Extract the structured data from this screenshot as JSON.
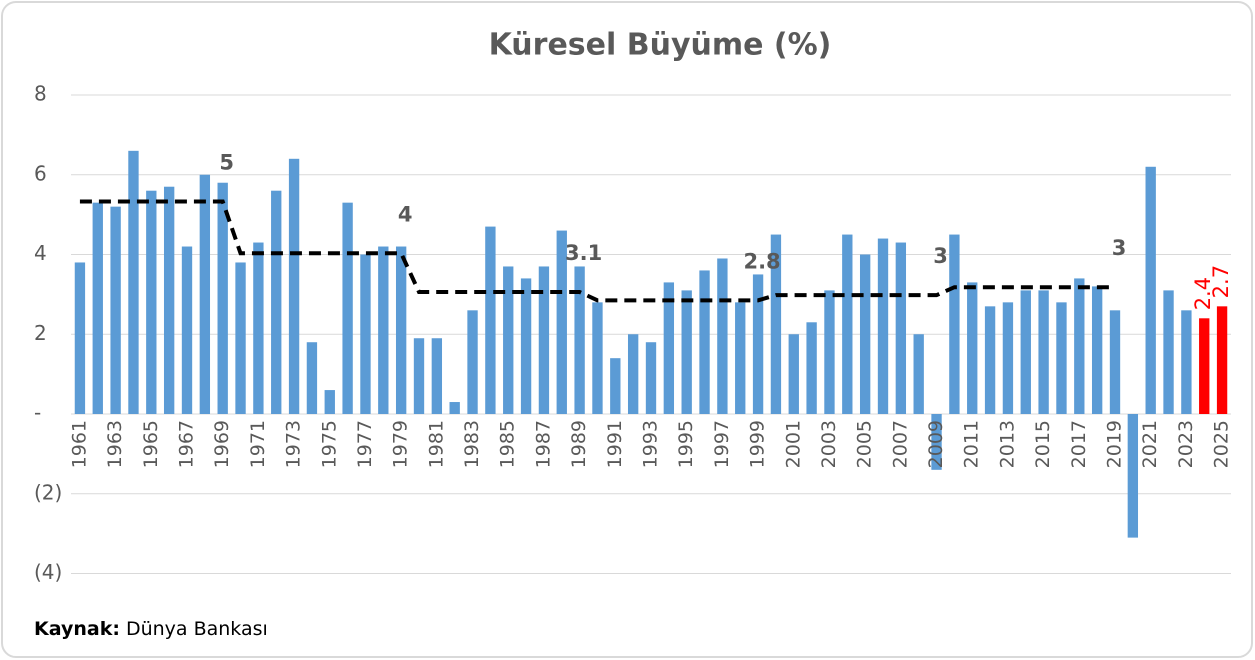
{
  "chart_data": {
    "type": "bar",
    "title": "Küresel Büyüme (%)",
    "categories": [
      "1961",
      null,
      "1963",
      null,
      "1965",
      null,
      "1967",
      null,
      "1969",
      null,
      "1971",
      null,
      "1973",
      null,
      "1975",
      null,
      "1977",
      null,
      "1979",
      null,
      "1981",
      null,
      "1983",
      null,
      "1985",
      null,
      "1987",
      null,
      "1989",
      null,
      "1991",
      null,
      "1993",
      null,
      "1995",
      null,
      "1997",
      null,
      "1999",
      null,
      "2001",
      null,
      "2003",
      null,
      "2005",
      null,
      "2007",
      null,
      "2009",
      null,
      "2011",
      null,
      "2013",
      null,
      "2015",
      null,
      "2017",
      null,
      "2019",
      null,
      "2021",
      null,
      "2023",
      null,
      "2025"
    ],
    "values": [
      3.8,
      5.3,
      5.2,
      6.6,
      5.6,
      5.7,
      4.2,
      6.0,
      5.8,
      3.8,
      4.3,
      5.6,
      6.4,
      1.8,
      0.6,
      5.3,
      4.0,
      4.2,
      4.2,
      1.9,
      1.9,
      0.3,
      2.6,
      4.7,
      3.7,
      3.4,
      3.7,
      4.6,
      3.7,
      2.8,
      1.4,
      2.0,
      1.8,
      3.3,
      3.1,
      3.6,
      3.9,
      2.8,
      3.5,
      4.5,
      2.0,
      2.3,
      3.1,
      4.5,
      4.0,
      4.4,
      4.3,
      2.0,
      -1.4,
      4.5,
      3.3,
      2.7,
      2.8,
      3.1,
      3.1,
      2.8,
      3.4,
      3.2,
      2.6,
      -3.1,
      6.2,
      3.1,
      2.6,
      2.4,
      2.7
    ],
    "colors": [
      "#5b9bd5",
      "#5b9bd5",
      "#5b9bd5",
      "#5b9bd5",
      "#5b9bd5",
      "#5b9bd5",
      "#5b9bd5",
      "#5b9bd5",
      "#5b9bd5",
      "#5b9bd5",
      "#5b9bd5",
      "#5b9bd5",
      "#5b9bd5",
      "#5b9bd5",
      "#5b9bd5",
      "#5b9bd5",
      "#5b9bd5",
      "#5b9bd5",
      "#5b9bd5",
      "#5b9bd5",
      "#5b9bd5",
      "#5b9bd5",
      "#5b9bd5",
      "#5b9bd5",
      "#5b9bd5",
      "#5b9bd5",
      "#5b9bd5",
      "#5b9bd5",
      "#5b9bd5",
      "#5b9bd5",
      "#5b9bd5",
      "#5b9bd5",
      "#5b9bd5",
      "#5b9bd5",
      "#5b9bd5",
      "#5b9bd5",
      "#5b9bd5",
      "#5b9bd5",
      "#5b9bd5",
      "#5b9bd5",
      "#5b9bd5",
      "#5b9bd5",
      "#5b9bd5",
      "#5b9bd5",
      "#5b9bd5",
      "#5b9bd5",
      "#5b9bd5",
      "#5b9bd5",
      "#5b9bd5",
      "#5b9bd5",
      "#5b9bd5",
      "#5b9bd5",
      "#5b9bd5",
      "#5b9bd5",
      "#5b9bd5",
      "#5b9bd5",
      "#5b9bd5",
      "#5b9bd5",
      "#5b9bd5",
      "#5b9bd5",
      "#5b9bd5",
      "#5b9bd5",
      "#5b9bd5",
      "#ff0000",
      "#ff0000"
    ],
    "value_labels": [
      null,
      null,
      null,
      null,
      null,
      null,
      null,
      null,
      null,
      null,
      null,
      null,
      null,
      null,
      null,
      null,
      null,
      null,
      null,
      null,
      null,
      null,
      null,
      null,
      null,
      null,
      null,
      null,
      null,
      null,
      null,
      null,
      null,
      null,
      null,
      null,
      null,
      null,
      null,
      null,
      null,
      null,
      null,
      null,
      null,
      null,
      null,
      null,
      null,
      null,
      null,
      null,
      null,
      null,
      null,
      null,
      null,
      null,
      null,
      null,
      null,
      null,
      null,
      "2.4",
      "2.7"
    ],
    "line": {
      "color": "#000000",
      "dashed": true,
      "values": [
        5.33,
        5.33,
        5.33,
        5.33,
        5.33,
        5.33,
        5.33,
        5.33,
        5.33,
        4.03,
        4.03,
        4.03,
        4.03,
        4.03,
        4.03,
        4.03,
        4.03,
        4.03,
        4.03,
        3.06,
        3.06,
        3.06,
        3.06,
        3.06,
        3.06,
        3.06,
        3.06,
        3.06,
        3.06,
        2.85,
        2.85,
        2.85,
        2.85,
        2.85,
        2.85,
        2.85,
        2.85,
        2.85,
        2.85,
        2.98,
        2.98,
        2.98,
        2.98,
        2.98,
        2.98,
        2.98,
        2.98,
        2.98,
        2.98,
        3.18,
        3.18,
        3.18,
        3.18,
        3.18,
        3.18,
        3.18,
        3.18,
        3.18,
        3.18,
        null,
        null,
        null,
        null,
        null,
        null
      ]
    },
    "annotations": [
      {
        "text": "5",
        "x": "1969"
      },
      {
        "text": "4",
        "x": "1979"
      },
      {
        "text": "3.1",
        "x": "1989"
      },
      {
        "text": "2.8",
        "x": "1999"
      },
      {
        "text": "3",
        "x": "2009"
      },
      {
        "text": "3",
        "x": "2019"
      }
    ],
    "ylim": [
      -4,
      8
    ],
    "yticks": [
      {
        "value": -4,
        "label": "(4)"
      },
      {
        "value": -2,
        "label": "(2)"
      },
      {
        "value": 0,
        "label": "-"
      },
      2,
      4,
      6,
      8
    ],
    "grid": true,
    "source": {
      "label": "Kaynak:",
      "text": "Dünya Bankası"
    }
  }
}
